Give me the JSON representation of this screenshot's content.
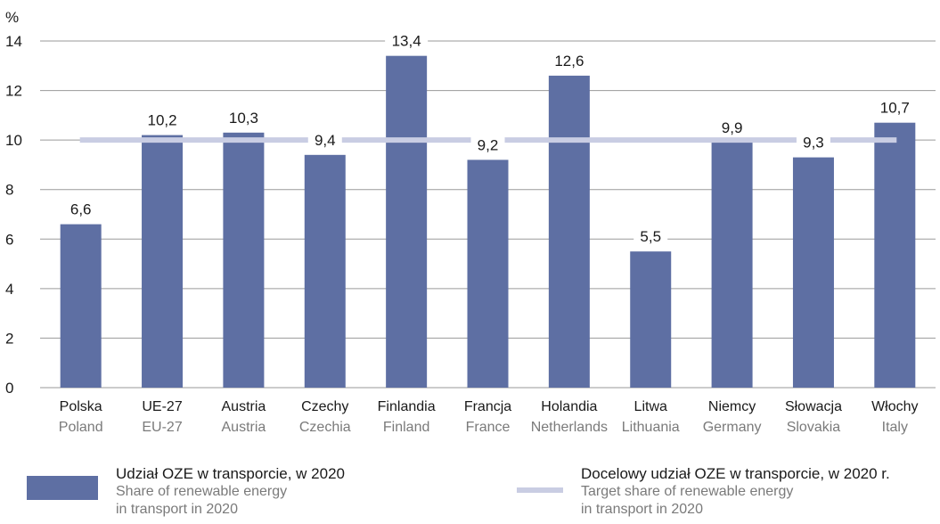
{
  "chart_data": {
    "type": "bar",
    "unit": "%",
    "categories": [
      {
        "pl": "Polska",
        "en": "Poland"
      },
      {
        "pl": "UE-27",
        "en": "EU-27"
      },
      {
        "pl": "Austria",
        "en": "Austria"
      },
      {
        "pl": "Czechy",
        "en": "Czechia"
      },
      {
        "pl": "Finlandia",
        "en": "Finland"
      },
      {
        "pl": "Francja",
        "en": "France"
      },
      {
        "pl": "Holandia",
        "en": "Netherlands"
      },
      {
        "pl": "Litwa",
        "en": "Lithuania"
      },
      {
        "pl": "Niemcy",
        "en": "Germany"
      },
      {
        "pl": "Słowacja",
        "en": "Slovakia"
      },
      {
        "pl": "Włochy",
        "en": "Italy"
      }
    ],
    "values": [
      6.6,
      10.2,
      10.3,
      9.4,
      13.4,
      9.2,
      12.6,
      5.5,
      9.9,
      9.3,
      10.7
    ],
    "value_labels": [
      "6,6",
      "10,2",
      "10,3",
      "9,4",
      "13,4",
      "9,2",
      "12,6",
      "5,5",
      "9,9",
      "9,3",
      "10,7"
    ],
    "target": 10,
    "ylim": [
      0,
      14
    ],
    "yticks": [
      0,
      2,
      4,
      6,
      8,
      10,
      12,
      14
    ],
    "grid": true,
    "bar_color": "#5e6fa3",
    "target_color": "#c9cde3",
    "grid_color": "#9a9a9a",
    "legend_position": "bottom"
  },
  "legend": {
    "bars": {
      "pl": "Udział OZE w transporcie, w 2020",
      "en_line1": "Share of renewable energy",
      "en_line2": "in transport in 2020"
    },
    "target": {
      "pl": "Docelowy udział OZE w transporcie, w 2020 r.",
      "en_line1": "Target share of renewable energy",
      "en_line2": "in transport in 2020"
    }
  }
}
